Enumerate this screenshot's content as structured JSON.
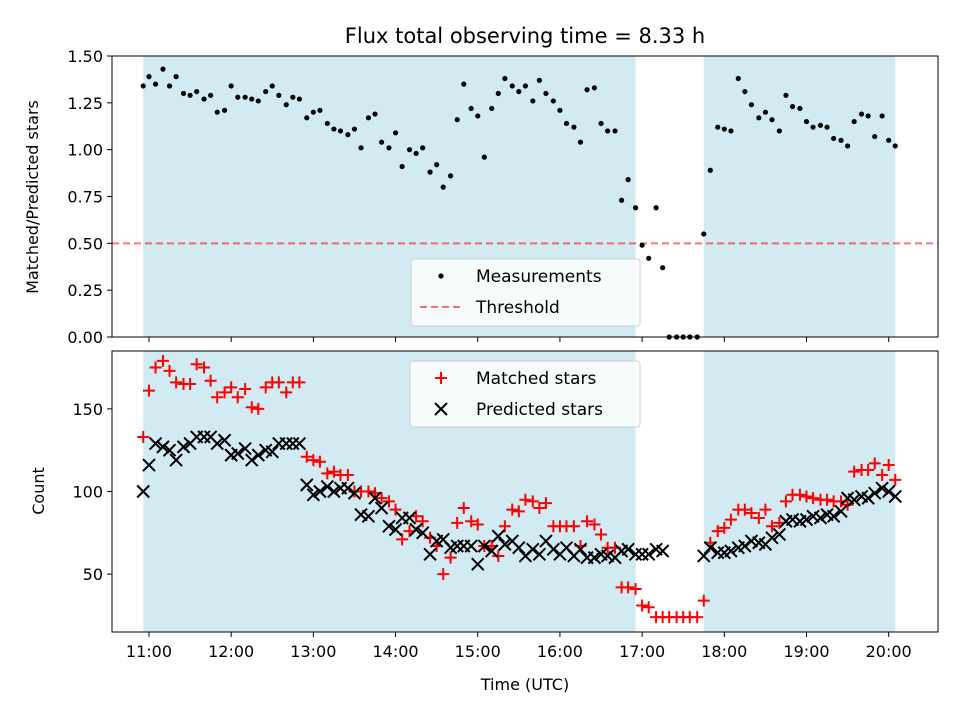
{
  "title": "Flux total observing time = 8.33 h",
  "colors": {
    "shade": "#add8e6",
    "measurement": "#000000",
    "threshold": "#ff0000",
    "matched": "#ff0000",
    "predicted": "#000000"
  },
  "chart_data": [
    {
      "type": "scatter",
      "ylabel": "Matched/Predicted stars",
      "ylim": [
        0,
        1.5
      ],
      "yticks": [
        "0.00",
        "0.25",
        "0.50",
        "0.75",
        "1.00",
        "1.25",
        "1.50"
      ],
      "grid": false,
      "legend_position": "lower-center",
      "observing_windows": [
        [
          10.93,
          16.92
        ],
        [
          17.75,
          20.08
        ]
      ],
      "threshold": {
        "name": "Threshold",
        "y": 0.5
      },
      "series": [
        {
          "name": "Measurements",
          "x": [
            10.93,
            11.0,
            11.08,
            11.17,
            11.25,
            11.33,
            11.42,
            11.5,
            11.58,
            11.67,
            11.75,
            11.83,
            11.92,
            12.0,
            12.08,
            12.17,
            12.25,
            12.33,
            12.42,
            12.5,
            12.58,
            12.67,
            12.75,
            12.83,
            12.92,
            13.0,
            13.08,
            13.17,
            13.25,
            13.33,
            13.42,
            13.5,
            13.58,
            13.67,
            13.75,
            13.83,
            13.92,
            14.0,
            14.08,
            14.17,
            14.25,
            14.33,
            14.42,
            14.5,
            14.58,
            14.67,
            14.75,
            14.83,
            14.92,
            15.0,
            15.08,
            15.17,
            15.25,
            15.33,
            15.42,
            15.5,
            15.58,
            15.67,
            15.75,
            15.83,
            15.92,
            16.0,
            16.08,
            16.17,
            16.25,
            16.33,
            16.42,
            16.5,
            16.58,
            16.67,
            16.75,
            16.83,
            16.92,
            17.0,
            17.08,
            17.17,
            17.25,
            17.33,
            17.42,
            17.5,
            17.58,
            17.67,
            17.75,
            17.83,
            17.92,
            18.0,
            18.08,
            18.17,
            18.25,
            18.33,
            18.42,
            18.5,
            18.58,
            18.67,
            18.75,
            18.83,
            18.92,
            19.0,
            19.08,
            19.17,
            19.25,
            19.33,
            19.42,
            19.5,
            19.58,
            19.67,
            19.75,
            19.83,
            19.92,
            20.0,
            20.08
          ],
          "y": [
            1.34,
            1.39,
            1.35,
            1.43,
            1.34,
            1.39,
            1.3,
            1.29,
            1.31,
            1.27,
            1.29,
            1.2,
            1.21,
            1.34,
            1.28,
            1.28,
            1.27,
            1.26,
            1.31,
            1.34,
            1.29,
            1.24,
            1.28,
            1.27,
            1.17,
            1.2,
            1.21,
            1.14,
            1.11,
            1.1,
            1.08,
            1.11,
            1.01,
            1.17,
            1.19,
            1.04,
            1.01,
            1.09,
            0.91,
            1.0,
            0.98,
            1.01,
            0.88,
            0.92,
            0.8,
            0.86,
            1.16,
            1.35,
            1.22,
            1.18,
            0.96,
            1.22,
            1.3,
            1.38,
            1.34,
            1.31,
            1.34,
            1.26,
            1.37,
            1.3,
            1.26,
            1.21,
            1.14,
            1.12,
            1.04,
            1.32,
            1.33,
            1.14,
            1.1,
            1.1,
            0.73,
            0.84,
            0.69,
            0.49,
            0.42,
            0.69,
            0.37,
            0.0,
            0.0,
            0.0,
            0.0,
            0.0,
            0.55,
            0.89,
            1.12,
            1.11,
            1.1,
            1.38,
            1.31,
            1.24,
            1.17,
            1.2,
            1.16,
            1.1,
            1.29,
            1.23,
            1.22,
            1.15,
            1.12,
            1.13,
            1.12,
            1.06,
            1.05,
            1.02,
            1.15,
            1.19,
            1.18,
            1.07,
            1.18,
            1.05,
            1.02
          ]
        }
      ]
    },
    {
      "type": "scatter",
      "xlabel": "Time (UTC)",
      "ylabel": "Count",
      "xlim": [
        10.55,
        20.6
      ],
      "ylim": [
        15,
        185
      ],
      "xticks": [
        "11:00",
        "12:00",
        "13:00",
        "14:00",
        "15:00",
        "16:00",
        "17:00",
        "18:00",
        "19:00",
        "20:00"
      ],
      "yticks": [
        "50",
        "100",
        "150"
      ],
      "grid": false,
      "legend_position": "upper-center",
      "series": [
        {
          "name": "Matched stars",
          "x": [
            10.93,
            11.0,
            11.08,
            11.17,
            11.25,
            11.33,
            11.42,
            11.5,
            11.58,
            11.67,
            11.75,
            11.83,
            11.92,
            12.0,
            12.08,
            12.17,
            12.25,
            12.33,
            12.42,
            12.5,
            12.58,
            12.67,
            12.75,
            12.83,
            12.92,
            13.0,
            13.08,
            13.17,
            13.25,
            13.33,
            13.42,
            13.5,
            13.58,
            13.67,
            13.75,
            13.83,
            13.92,
            14.0,
            14.08,
            14.17,
            14.25,
            14.33,
            14.42,
            14.5,
            14.58,
            14.67,
            14.75,
            14.83,
            14.92,
            15.0,
            15.08,
            15.17,
            15.25,
            15.33,
            15.42,
            15.5,
            15.58,
            15.67,
            15.75,
            15.83,
            15.92,
            16.0,
            16.08,
            16.17,
            16.25,
            16.33,
            16.42,
            16.5,
            16.58,
            16.67,
            16.75,
            16.83,
            16.92,
            17.0,
            17.08,
            17.17,
            17.25,
            17.33,
            17.42,
            17.5,
            17.58,
            17.67,
            17.75,
            17.83,
            17.92,
            18.0,
            18.08,
            18.17,
            18.25,
            18.33,
            18.42,
            18.5,
            18.58,
            18.67,
            18.75,
            18.83,
            18.92,
            19.0,
            19.08,
            19.17,
            19.25,
            19.33,
            19.42,
            19.5,
            19.58,
            19.67,
            19.75,
            19.83,
            19.92,
            20.0,
            20.08
          ],
          "values": [
            133,
            161,
            175,
            179,
            173,
            166,
            165,
            165,
            177,
            175,
            167,
            157,
            160,
            163,
            157,
            162,
            151,
            150,
            163,
            166,
            166,
            160,
            166,
            166,
            121,
            119,
            118,
            111,
            112,
            110,
            110,
            100,
            100,
            100,
            99,
            96,
            94,
            89,
            71,
            76,
            85,
            82,
            72,
            67,
            50,
            60,
            81,
            90,
            82,
            80,
            67,
            67,
            61,
            79,
            89,
            88,
            95,
            94,
            90,
            93,
            79,
            79,
            79,
            79,
            67,
            82,
            80,
            74,
            66,
            66,
            42,
            42,
            41,
            31,
            30,
            24,
            24,
            24,
            24,
            24,
            24,
            24,
            34,
            69,
            76,
            78,
            83,
            89,
            89,
            87,
            84,
            89,
            79,
            81,
            94,
            98,
            98,
            97,
            96,
            95,
            95,
            94,
            94,
            92,
            112,
            113,
            113,
            117,
            110,
            116,
            107
          ]
        },
        {
          "name": "Predicted stars",
          "x": [
            10.93,
            11.0,
            11.08,
            11.17,
            11.25,
            11.33,
            11.42,
            11.5,
            11.58,
            11.67,
            11.75,
            11.83,
            11.92,
            12.0,
            12.08,
            12.17,
            12.25,
            12.33,
            12.42,
            12.5,
            12.58,
            12.67,
            12.75,
            12.83,
            12.92,
            13.0,
            13.08,
            13.17,
            13.25,
            13.33,
            13.42,
            13.5,
            13.58,
            13.67,
            13.75,
            13.83,
            13.92,
            14.0,
            14.08,
            14.17,
            14.25,
            14.33,
            14.42,
            14.5,
            14.58,
            14.67,
            14.75,
            14.83,
            14.92,
            15.0,
            15.08,
            15.17,
            15.25,
            15.33,
            15.42,
            15.5,
            15.58,
            15.67,
            15.75,
            15.83,
            15.92,
            16.0,
            16.08,
            16.17,
            16.25,
            16.33,
            16.42,
            16.5,
            16.58,
            16.67,
            16.75,
            16.83,
            16.92,
            17.0,
            17.08,
            17.17,
            17.25,
            17.75,
            17.83,
            17.92,
            18.0,
            18.08,
            18.17,
            18.25,
            18.33,
            18.42,
            18.5,
            18.58,
            18.67,
            18.75,
            18.83,
            18.92,
            19.0,
            19.08,
            19.17,
            19.25,
            19.33,
            19.42,
            19.5,
            19.58,
            19.67,
            19.75,
            19.83,
            19.92,
            20.0,
            20.08
          ],
          "values": [
            100,
            116,
            129,
            127,
            125,
            119,
            127,
            129,
            133,
            133,
            133,
            129,
            131,
            122,
            123,
            126,
            119,
            122,
            125,
            124,
            129,
            129,
            129,
            129,
            104,
            98,
            100,
            103,
            100,
            102,
            102,
            99,
            86,
            85,
            96,
            90,
            79,
            77,
            84,
            84,
            77,
            75,
            62,
            70,
            71,
            66,
            67,
            67,
            67,
            56,
            67,
            64,
            73,
            68,
            70,
            66,
            61,
            65,
            62,
            70,
            65,
            62,
            66,
            61,
            65,
            60,
            60,
            62,
            61,
            60,
            64,
            65,
            62,
            62,
            62,
            65,
            64,
            61,
            66,
            63,
            63,
            64,
            66,
            67,
            70,
            69,
            68,
            72,
            74,
            82,
            83,
            82,
            83,
            85,
            84,
            86,
            85,
            88,
            96,
            95,
            97,
            96,
            99,
            102,
            100,
            97
          ]
        }
      ]
    }
  ]
}
